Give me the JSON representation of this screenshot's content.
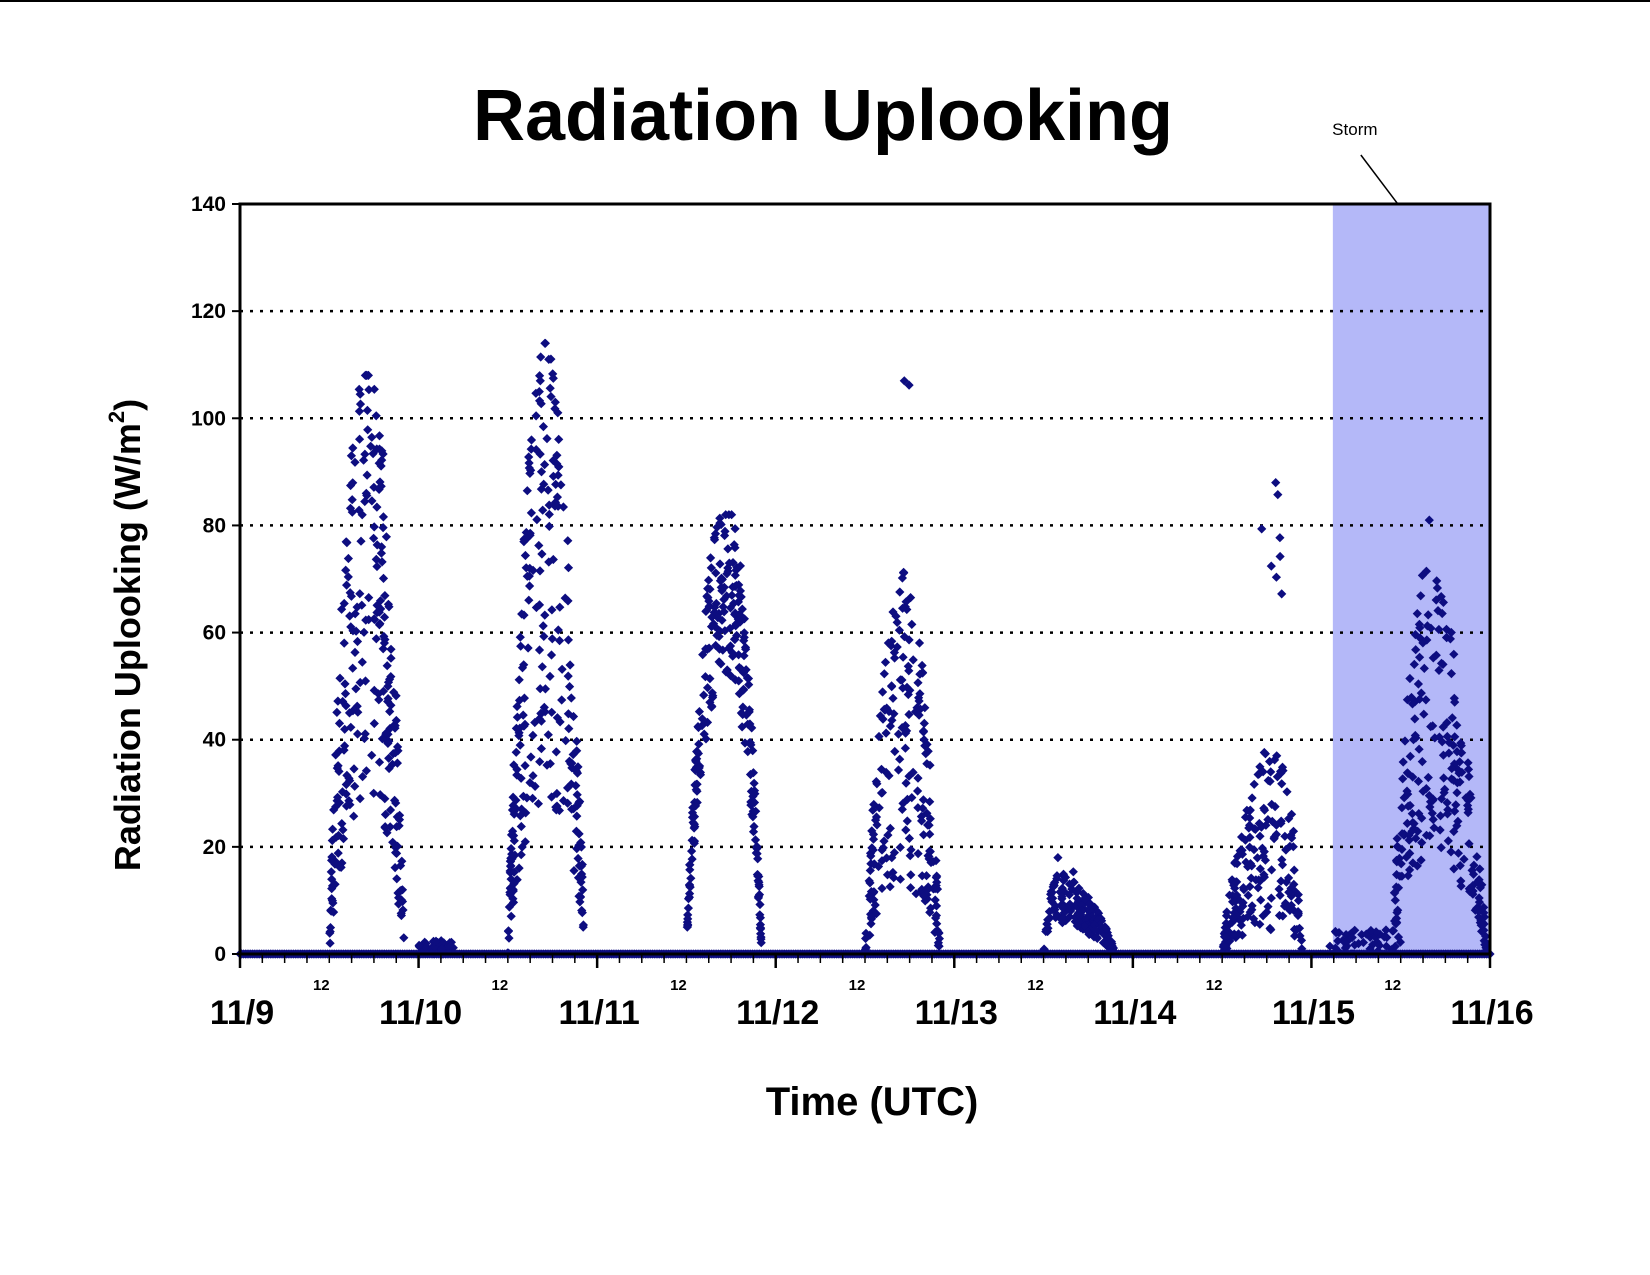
{
  "chart_data": {
    "type": "scatter",
    "title": "Radiation Uplooking",
    "xlabel": "Time (UTC)",
    "ylabel": "Radiation Uplooking (W/m",
    "ylabel_superscript": "2",
    "ylabel_close": ")",
    "xlim": [
      0,
      7
    ],
    "ylim": [
      0,
      140
    ],
    "y_ticks": [
      "0",
      "20",
      "40",
      "60",
      "80",
      "100",
      "120",
      "140"
    ],
    "y_tick_values": [
      0,
      20,
      40,
      60,
      80,
      100,
      120,
      140
    ],
    "x_tick_labels": [
      "11/9",
      "11/10",
      "11/11",
      "11/12",
      "11/13",
      "11/14",
      "11/15",
      "11/16"
    ],
    "hour_label": "12",
    "grid": "horizontal dotted",
    "annotation": {
      "text": "Storm",
      "x_start": 6.12,
      "x_end": 7.0
    },
    "colors": {
      "points": "#0d0d80",
      "storm_band": "#b4b8f8",
      "axes": "#000000"
    },
    "series": [
      {
        "days": [
          {
            "start": 0.5,
            "peak": 0.71,
            "end": 0.92,
            "max": 108,
            "scale": 72,
            "noise": 0.6,
            "n": 260
          },
          {
            "start": 1.5,
            "peak": 1.71,
            "end": 1.93,
            "max": 114,
            "scale": 72,
            "noise": 0.6,
            "n": 260
          },
          {
            "start": 2.5,
            "peak": 2.72,
            "end": 2.92,
            "max": 82,
            "scale": 70,
            "noise": 0.25,
            "n": 260
          },
          {
            "start": 3.5,
            "peak": 3.72,
            "end": 3.92,
            "max": 107,
            "scale": 42,
            "noise": 0.7,
            "n": 220
          },
          {
            "start": 4.5,
            "peak": 4.58,
            "end": 4.9,
            "max": 18,
            "scale": 10,
            "noise": 0.5,
            "n": 180
          },
          {
            "start": 5.5,
            "peak": 5.8,
            "end": 5.95,
            "max": 88,
            "scale": 22,
            "noise": 0.8,
            "n": 200
          },
          {
            "start": 6.45,
            "peak": 6.66,
            "end": 6.98,
            "max": 81,
            "scale": 45,
            "noise": 0.6,
            "n": 240
          }
        ],
        "low_bumps": [
          {
            "x0": 1.0,
            "x1": 1.2,
            "max": 2.5
          },
          {
            "x0": 6.1,
            "x1": 6.5,
            "max": 4.5
          }
        ]
      }
    ]
  }
}
